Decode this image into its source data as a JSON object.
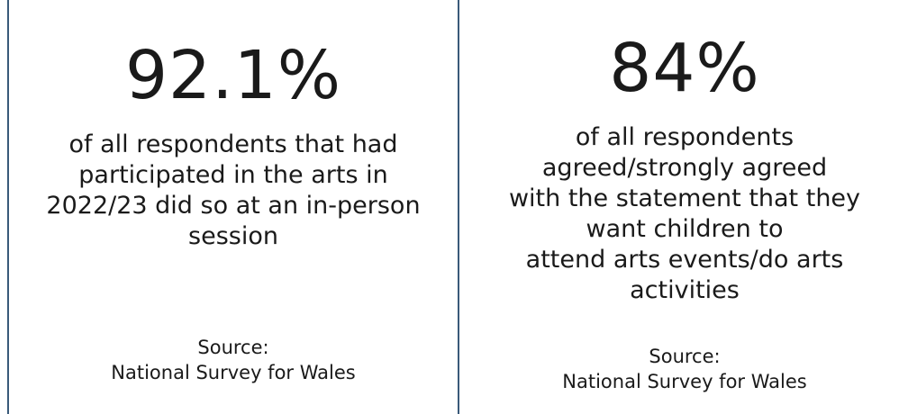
{
  "panels": [
    {
      "stat": "92.1%",
      "description": "of all respondents that had\nparticipated in the arts in\n2022/23 did so at an in-person\nsession",
      "source": "Source:\nNational Survey for Wales"
    },
    {
      "stat": "84%",
      "description": "of all respondents\nagreed/strongly agreed\nwith the statement that they\nwant children to\nattend arts events/do arts\nactivities",
      "source": "Source:\nNational Survey for Wales"
    }
  ],
  "colors": {
    "divider": "#3a5a7a",
    "text": "#1a1a1a",
    "background": "#ffffff"
  }
}
